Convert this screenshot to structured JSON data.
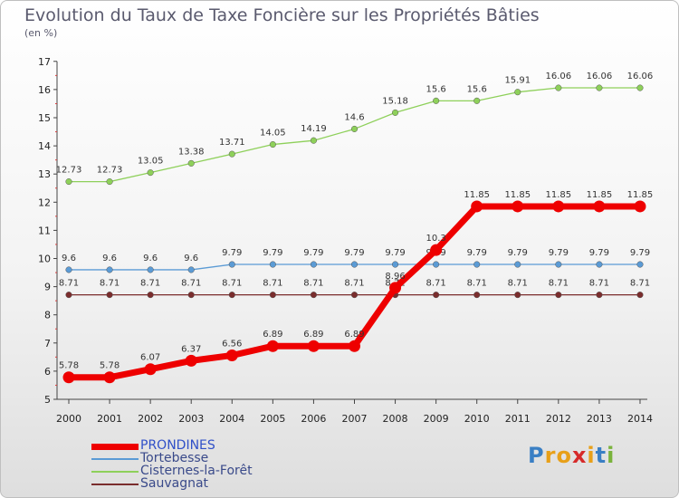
{
  "title": "Evolution du Taux de Taxe Foncière sur les Propriétés Bâties",
  "unit": "(en %)",
  "logo": {
    "letters": [
      "P",
      "r",
      "o",
      "x",
      "i",
      "t",
      "i"
    ],
    "colors": [
      "#3a7fc4",
      "#e8a019",
      "#e8a019",
      "#d62a2a",
      "#e8a019",
      "#3a7fc4",
      "#7ab33c"
    ]
  },
  "chart_data": {
    "type": "line",
    "title": "Evolution du Taux de Taxe Foncière sur les Propriétés Bâties",
    "ylabel": "(en %)",
    "xlabel": "",
    "x": [
      "2000",
      "2001",
      "2002",
      "2003",
      "2004",
      "2005",
      "2006",
      "2007",
      "2008",
      "2009",
      "2010",
      "2011",
      "2012",
      "2013",
      "2014"
    ],
    "ylim": [
      5,
      17
    ],
    "yticks": [
      5,
      6,
      7,
      8,
      9,
      10,
      11,
      12,
      13,
      14,
      15,
      16,
      17
    ],
    "grid": false,
    "legend_position": "bottom-left",
    "series": [
      {
        "name": "PRONDINES",
        "color": "#ee0000",
        "emphasis": true,
        "values": [
          5.78,
          5.78,
          6.07,
          6.37,
          6.56,
          6.89,
          6.89,
          6.89,
          8.96,
          10.3,
          11.85,
          11.85,
          11.85,
          11.85,
          11.85
        ],
        "labels": [
          "5.78",
          "5.78",
          "6.07",
          "6.37",
          "6.56",
          "6.89",
          "6.89",
          "6.89",
          "8.96",
          "10.3",
          "11.85",
          "11.85",
          "11.85",
          "11.85",
          "11.85"
        ]
      },
      {
        "name": "Tortebesse",
        "color": "#5b9bd5",
        "emphasis": false,
        "values": [
          9.6,
          9.6,
          9.6,
          9.6,
          9.79,
          9.79,
          9.79,
          9.79,
          9.79,
          9.79,
          9.79,
          9.79,
          9.79,
          9.79,
          9.79
        ],
        "labels": [
          "9.6",
          "9.6",
          "9.6",
          "9.6",
          "9.79",
          "9.79",
          "9.79",
          "9.79",
          "9.79",
          "9.79",
          "9.79",
          "9.79",
          "9.79",
          "9.79",
          "9.79"
        ]
      },
      {
        "name": "Cisternes-la-Forêt",
        "color": "#8ed05a",
        "emphasis": false,
        "values": [
          12.73,
          12.73,
          13.05,
          13.38,
          13.71,
          14.05,
          14.19,
          14.6,
          15.18,
          15.6,
          15.6,
          15.91,
          16.06,
          16.06,
          16.06
        ],
        "labels": [
          "12.73",
          "12.73",
          "13.05",
          "13.38",
          "13.71",
          "14.05",
          "14.19",
          "14.6",
          "15.18",
          "15.6",
          "15.6",
          "15.91",
          "16.06",
          "16.06",
          "16.06"
        ]
      },
      {
        "name": "Sauvagnat",
        "color": "#7a2d2d",
        "emphasis": false,
        "values": [
          8.71,
          8.71,
          8.71,
          8.71,
          8.71,
          8.71,
          8.71,
          8.71,
          8.71,
          8.71,
          8.71,
          8.71,
          8.71,
          8.71,
          8.71
        ],
        "labels": [
          "8.71",
          "8.71",
          "8.71",
          "8.71",
          "8.71",
          "8.71",
          "8.71",
          "8.71",
          "8.71",
          "8.71",
          "8.71",
          "8.71",
          "8.71",
          "8.71",
          "8.71"
        ]
      }
    ]
  }
}
